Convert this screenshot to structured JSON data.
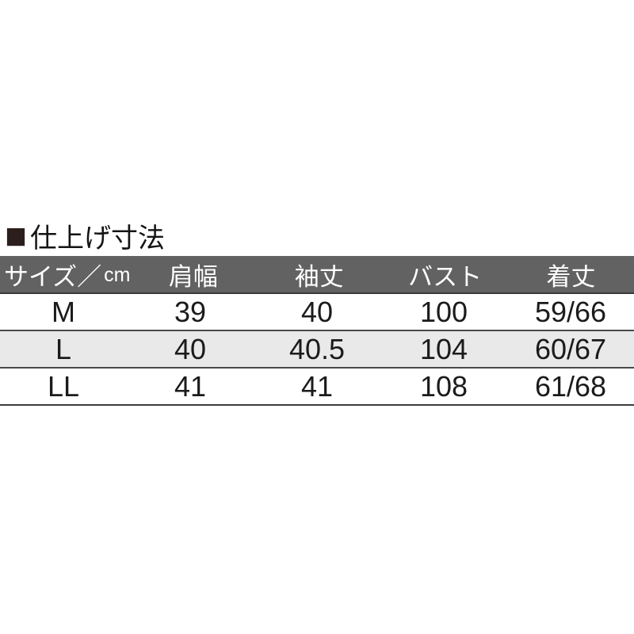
{
  "title": {
    "marker": "■",
    "text": "仕上げ寸法"
  },
  "size_table": {
    "header": {
      "size_label": "サイズ／",
      "size_unit": "cm",
      "columns": [
        "肩幅",
        "袖丈",
        "バスト",
        "着丈"
      ]
    },
    "rows": [
      {
        "size": "M",
        "values": [
          "39",
          "40",
          "100",
          "59/66"
        ]
      },
      {
        "size": "L",
        "values": [
          "40",
          "40.5",
          "104",
          "60/67"
        ]
      },
      {
        "size": "LL",
        "values": [
          "41",
          "41",
          "108",
          "61/68"
        ]
      }
    ]
  },
  "colors": {
    "header_bg": "#626262",
    "header_text": "#ffffff",
    "row_bg": "#ffffff",
    "row_alt_bg": "#e9e9e9",
    "rule": "#4a4a4a",
    "outer_rule": "#3c3c3c",
    "title_marker": "#2c1e1d",
    "body_text": "#1b1b1b"
  },
  "chart_data": {
    "type": "table",
    "title": "仕上げ寸法",
    "columns": [
      "サイズ／cm",
      "肩幅",
      "袖丈",
      "バスト",
      "着丈"
    ],
    "rows": [
      [
        "M",
        "39",
        "40",
        "100",
        "59/66"
      ],
      [
        "L",
        "40",
        "40.5",
        "104",
        "60/67"
      ],
      [
        "LL",
        "41",
        "41",
        "108",
        "61/68"
      ]
    ],
    "layout": "header row dark gray with white text; zebra stripe on L row; all measurements in cm"
  }
}
